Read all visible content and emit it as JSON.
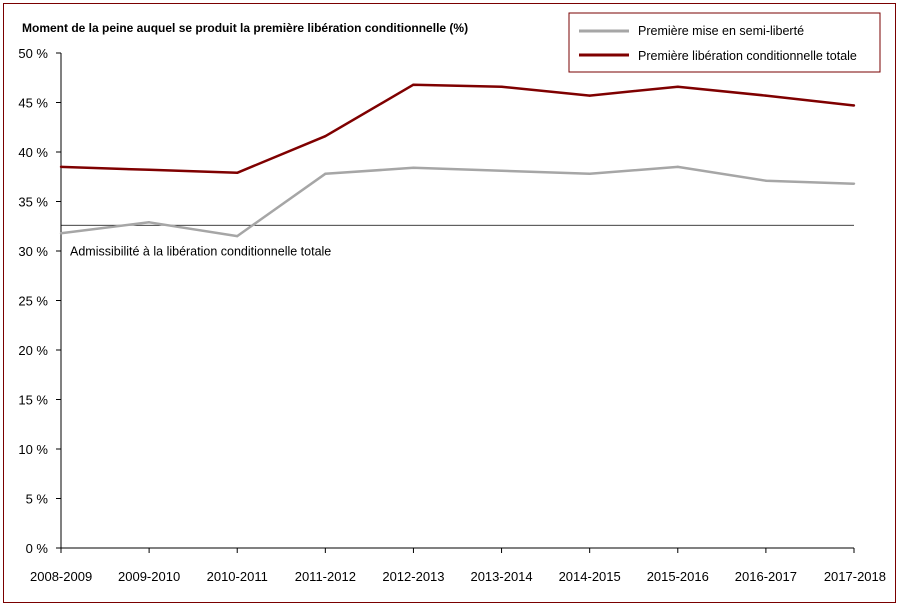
{
  "chart_data": {
    "type": "line",
    "title": "Moment de la peine auquel se produit la première libération conditionnelle (%)",
    "categories": [
      "2008-2009",
      "2009-2010",
      "2010-2011",
      "2011-2012",
      "2012-2013",
      "2013-2014",
      "2014-2015",
      "2015-2016",
      "2016-2017",
      "2017-2018"
    ],
    "y_tick_labels": [
      "0 %",
      "5 %",
      "10 %",
      "15 %",
      "20 %",
      "25 %",
      "30 %",
      "35 %",
      "40 %",
      "45 %",
      "50 %"
    ],
    "ylim": [
      0,
      50
    ],
    "series": [
      {
        "name": "Première mise en semi-liberté",
        "color": "#a6a6a6",
        "values": [
          31.8,
          32.9,
          31.5,
          37.8,
          38.4,
          38.1,
          37.8,
          38.5,
          37.1,
          36.8
        ]
      },
      {
        "name": "Première libération conditionnelle totale",
        "color": "#7f0000",
        "values": [
          38.5,
          38.2,
          37.9,
          41.6,
          46.8,
          46.6,
          45.7,
          46.6,
          45.7,
          44.7
        ]
      }
    ],
    "reference_line": {
      "value": 32.6,
      "label": "Admissibilité à la libération conditionnelle totale",
      "color": "#000000"
    },
    "legend_position": "top-right",
    "grid": false
  }
}
